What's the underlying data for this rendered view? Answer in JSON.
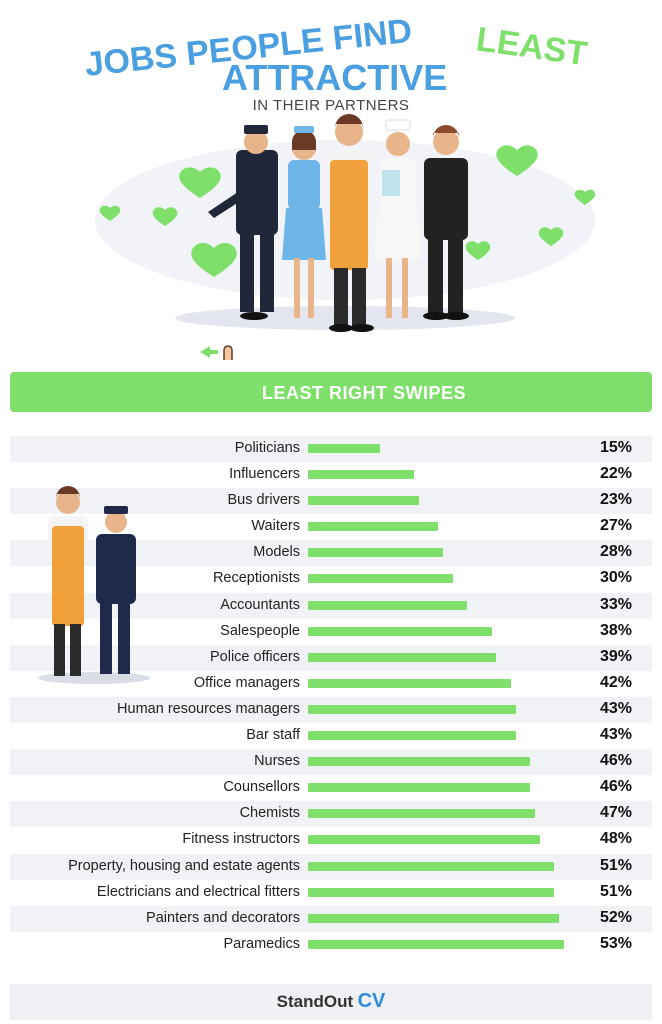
{
  "header": {
    "title_part1": "JOBS PEOPLE FIND",
    "title_part2": "LEAST",
    "title_part3": "ATTRACTIVE",
    "subtitle": "IN THEIR PARTNERS",
    "title_blue": "#4a9fe0",
    "title_green": "#7ee06a"
  },
  "banner": {
    "label": "LEAST RIGHT SWIPES"
  },
  "footer": {
    "logo_text": "StandOut",
    "logo_cv": "CV"
  },
  "chart_data": {
    "type": "bar",
    "orientation": "horizontal",
    "title": "LEAST RIGHT SWIPES",
    "bar_color": "#7ee06a",
    "value_max": 53,
    "categories": [
      "Politicians",
      "Influencers",
      "Bus drivers",
      "Waiters",
      "Models",
      "Receptionists",
      "Accountants",
      "Salespeople",
      "Police officers",
      "Office managers",
      "Human resources managers",
      "Bar staff",
      "Nurses",
      "Counsellors",
      "Chemists",
      "Fitness instructors",
      "Property, housing and estate agents",
      "Electricians and electrical fitters",
      "Painters and decorators",
      "Paramedics"
    ],
    "values": [
      15,
      22,
      23,
      27,
      28,
      30,
      33,
      38,
      39,
      42,
      43,
      43,
      46,
      46,
      47,
      48,
      51,
      51,
      52,
      53
    ],
    "labels": [
      "15%",
      "22%",
      "23%",
      "27%",
      "28%",
      "30%",
      "33%",
      "38%",
      "39%",
      "42%",
      "43%",
      "43%",
      "46%",
      "46%",
      "47%",
      "48%",
      "51%",
      "51%",
      "52%",
      "53%"
    ]
  }
}
